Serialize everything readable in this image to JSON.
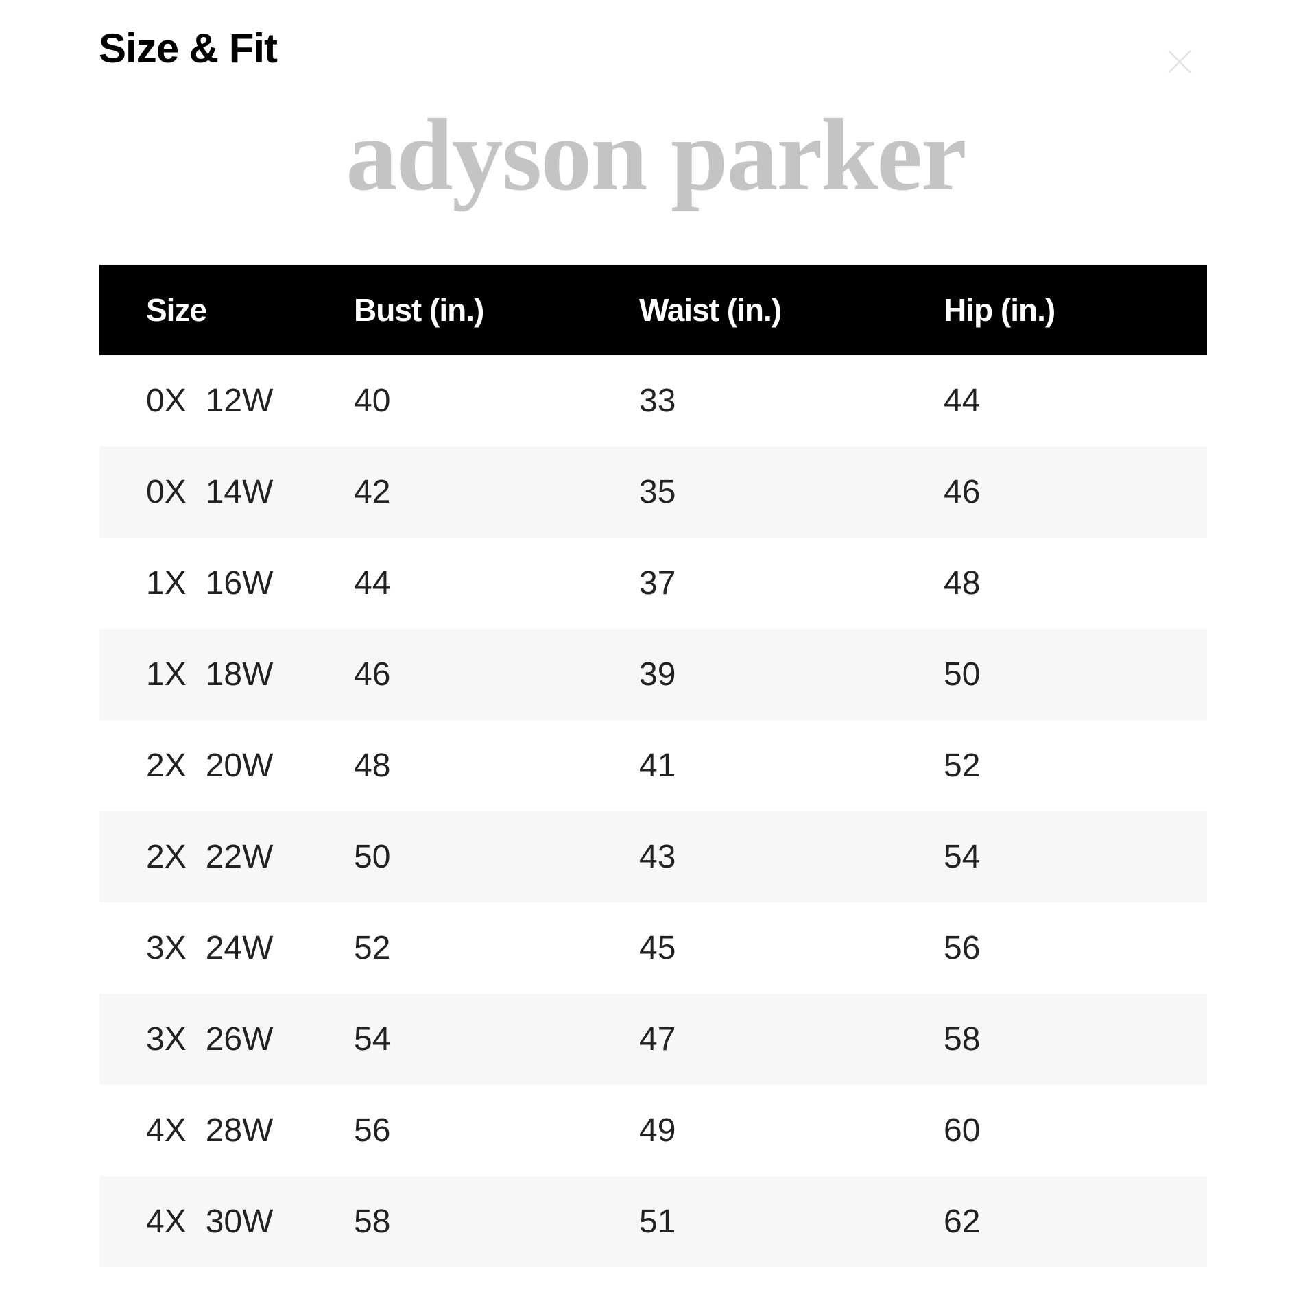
{
  "dialog": {
    "title": "Size & Fit",
    "close_icon": "close-icon",
    "brand_logo_text": "adyson parker"
  },
  "table": {
    "headers": [
      "Size",
      "Bust (in.)",
      "Waist (in.)",
      "Hip (in.)"
    ],
    "rows": [
      {
        "size": "0X",
        "w": "12W",
        "bust": "40",
        "waist": "33",
        "hip": "44"
      },
      {
        "size": "0X",
        "w": "14W",
        "bust": "42",
        "waist": "35",
        "hip": "46"
      },
      {
        "size": "1X",
        "w": "16W",
        "bust": "44",
        "waist": "37",
        "hip": "48"
      },
      {
        "size": "1X",
        "w": "18W",
        "bust": "46",
        "waist": "39",
        "hip": "50"
      },
      {
        "size": "2X",
        "w": "20W",
        "bust": "48",
        "waist": "41",
        "hip": "52"
      },
      {
        "size": "2X",
        "w": "22W",
        "bust": "50",
        "waist": "43",
        "hip": "54"
      },
      {
        "size": "3X",
        "w": "24W",
        "bust": "52",
        "waist": "45",
        "hip": "56"
      },
      {
        "size": "3X",
        "w": "26W",
        "bust": "54",
        "waist": "47",
        "hip": "58"
      },
      {
        "size": "4X",
        "w": "28W",
        "bust": "56",
        "waist": "49",
        "hip": "60"
      },
      {
        "size": "4X",
        "w": "30W",
        "bust": "58",
        "waist": "51",
        "hip": "62"
      }
    ]
  },
  "colors": {
    "header_bg": "#000000",
    "alt_row_bg": "#f7f7f7",
    "logo": "#c4c4c4"
  }
}
